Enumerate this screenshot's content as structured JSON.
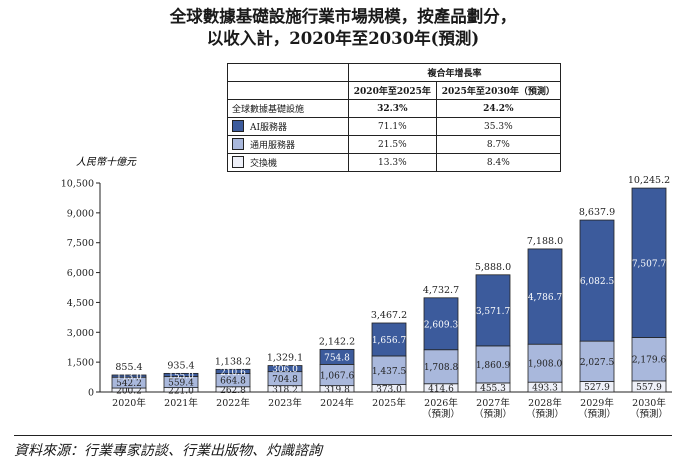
{
  "title_line1": "全球數據基礎設施行業市場規模，按產品劃分，",
  "title_line2": "以收入計，2020年至2030年(預測)",
  "legend_table": {
    "header_group": "複合年增長率",
    "col1": "2020年至2025年",
    "col2": "2025年至2030年（預測）",
    "rows": [
      {
        "label": "全球數據基礎設施",
        "v1": "32.3%",
        "v2": "24.2%",
        "swatch": null
      },
      {
        "label": "AI服務器",
        "v1": "71.1%",
        "v2": "35.3%",
        "swatch": "#3c5b9c"
      },
      {
        "label": "通用服務器",
        "v1": "21.5%",
        "v2": "8.7%",
        "swatch": "#a9b8dc"
      },
      {
        "label": "交換機",
        "v1": "13.3%",
        "v2": "8.4%",
        "swatch": "#eef0f8"
      }
    ]
  },
  "source": "資料來源：行業專家訪談、行業出版物、灼識諮詢",
  "chart_data": {
    "type": "bar",
    "stacked": true,
    "ylabel": "人民幣十億元",
    "ylim": [
      0,
      10500
    ],
    "yticks": [
      "0",
      "1,500",
      "3,000",
      "4,500",
      "6,000",
      "7,500",
      "9,000",
      "10,500"
    ],
    "categories": [
      "2020年",
      "2021年",
      "2022年",
      "2023年",
      "2024年",
      "2025年",
      "2026年\n（預測）",
      "2027年\n（預測）",
      "2028年\n（預測）",
      "2029年\n（預測）",
      "2030年\n（預測）"
    ],
    "series": [
      {
        "name": "交換機",
        "color": "#eef0f8",
        "values": [
          200.2,
          221.0,
          262.8,
          318.2,
          319.8,
          373.0,
          414.6,
          455.3,
          493.3,
          527.9,
          557.9
        ],
        "labels": [
          "200.2",
          "221.0",
          "262.8",
          "318.2",
          "319.8",
          "373.0",
          "414.6",
          "455.3",
          "493.3",
          "527.9",
          "557.9"
        ]
      },
      {
        "name": "通用服務器",
        "color": "#a9b8dc",
        "values": [
          542.2,
          559.4,
          664.8,
          704.8,
          1067.6,
          1437.5,
          1708.8,
          1860.9,
          1908.0,
          2027.5,
          2179.6
        ],
        "labels": [
          "542.2",
          "559.4",
          "664.8",
          "704.8",
          "1,067.6",
          "1,437.5",
          "1,708.8",
          "1,860.9",
          "1,908.0",
          "2,027.5",
          "2,179.6"
        ]
      },
      {
        "name": "AI服務器",
        "color": "#3c5b9c",
        "values": [
          113.0,
          155.0,
          210.6,
          306.0,
          754.8,
          1656.7,
          2609.3,
          3571.7,
          4786.7,
          6082.5,
          7507.7
        ],
        "labels": [
          "113.0",
          "155.0",
          "210.6",
          "306.0",
          "754.8",
          "1,656.7",
          "2,609.3",
          "3,571.7",
          "4,786.7",
          "6,082.5",
          "7,507.7"
        ]
      }
    ],
    "totals": [
      855.4,
      935.4,
      1138.2,
      1329.1,
      2142.2,
      3467.2,
      4732.7,
      5888.0,
      7188.0,
      8637.9,
      10245.2
    ],
    "total_labels": [
      "855.4",
      "935.4",
      "1,138.2",
      "1,329.1",
      "2,142.2",
      "3,467.2",
      "4,732.7",
      "5,888.0",
      "7,188.0",
      "8,637.9",
      "10,245.2"
    ]
  }
}
